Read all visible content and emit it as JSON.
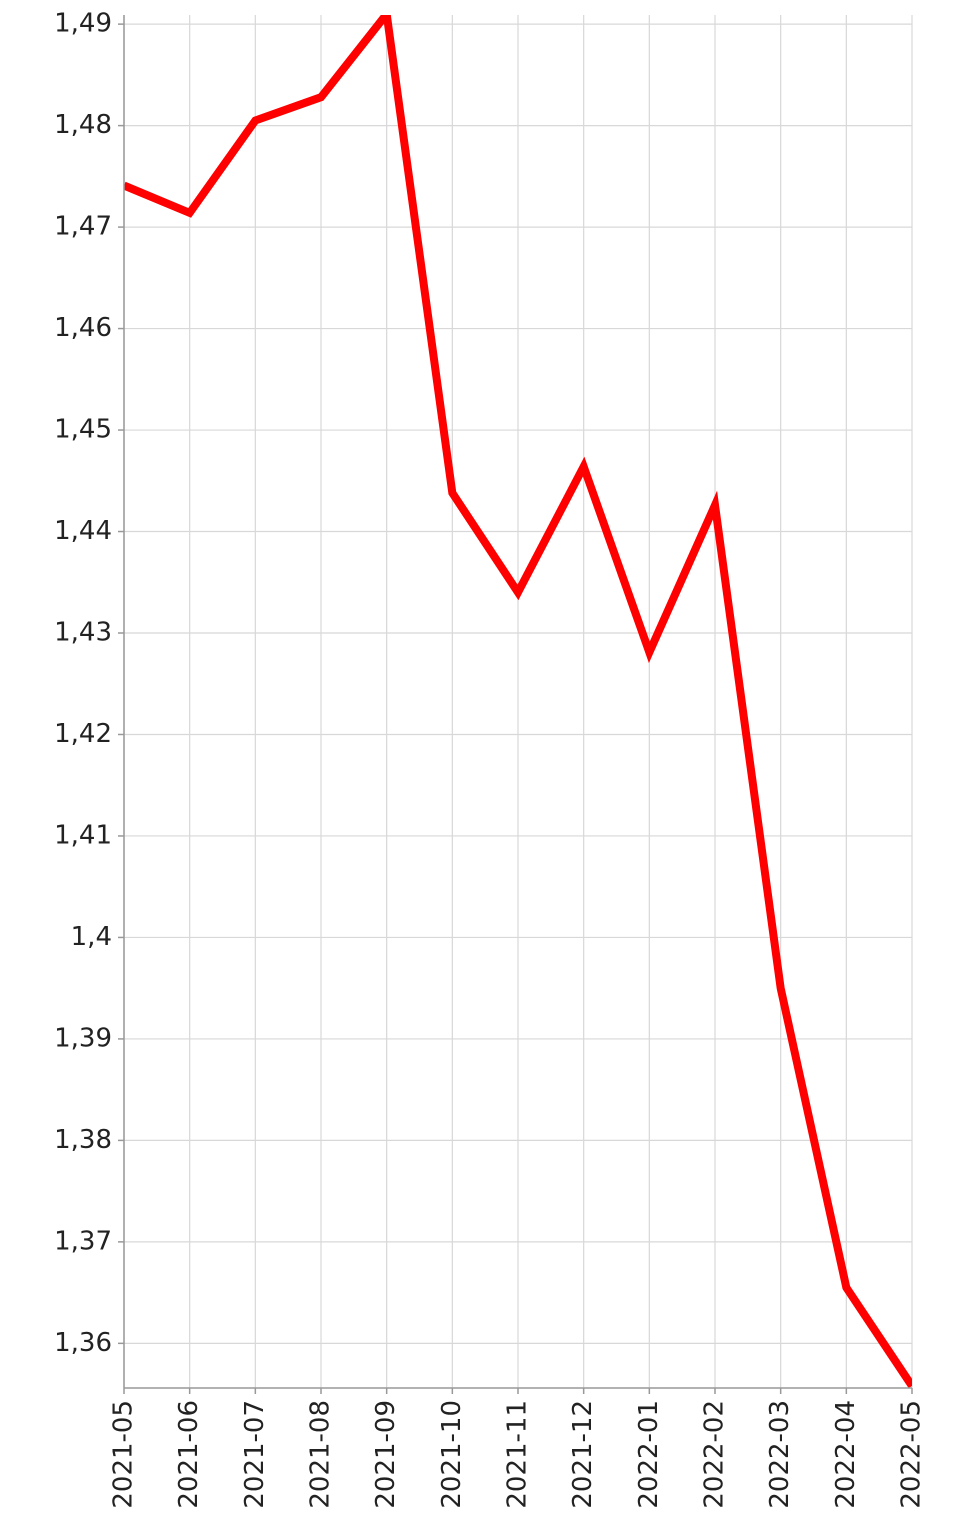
{
  "chart_data": {
    "type": "line",
    "categories": [
      "2021-05",
      "2021-06",
      "2021-07",
      "2021-08",
      "2021-09",
      "2021-10",
      "2021-11",
      "2021-12",
      "2022-01",
      "2022-02",
      "2022-03",
      "2022-04",
      "2022-05"
    ],
    "series": [
      {
        "color": "#ff0000",
        "values": [
          1.4741,
          1.4714,
          1.4805,
          1.4828,
          1.491,
          1.4438,
          1.434,
          1.4464,
          1.4281,
          1.4426,
          1.395,
          1.3655,
          1.3558
        ]
      }
    ],
    "ylim": [
      1.3556,
      1.4909
    ],
    "yticks": [
      {
        "value": 1.36,
        "label": "1,36"
      },
      {
        "value": 1.37,
        "label": "1,37"
      },
      {
        "value": 1.38,
        "label": "1,38"
      },
      {
        "value": 1.39,
        "label": "1,39"
      },
      {
        "value": 1.4,
        "label": "1,4"
      },
      {
        "value": 1.41,
        "label": "1,41"
      },
      {
        "value": 1.42,
        "label": "1,42"
      },
      {
        "value": 1.43,
        "label": "1,43"
      },
      {
        "value": 1.44,
        "label": "1,44"
      },
      {
        "value": 1.45,
        "label": "1,45"
      },
      {
        "value": 1.46,
        "label": "1,46"
      },
      {
        "value": 1.47,
        "label": "1,47"
      },
      {
        "value": 1.48,
        "label": "1,48"
      },
      {
        "value": 1.49,
        "label": "1,49"
      }
    ],
    "grid": true
  }
}
